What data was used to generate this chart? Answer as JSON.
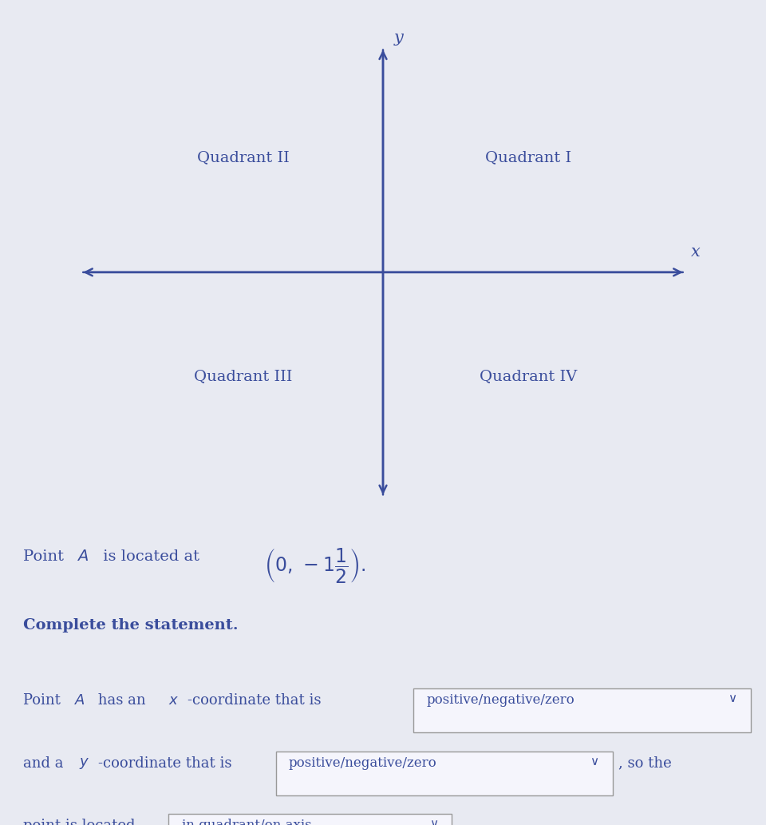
{
  "background_color": "#e8eaf2",
  "axis_color": "#3a4d9c",
  "text_color": "#3a4d9c",
  "quadrant_labels": [
    "Quadrant II",
    "Quadrant I",
    "Quadrant III",
    "Quadrant IV"
  ],
  "axis_label_x": "x",
  "axis_label_y": "y",
  "dropdown1": "positive/negative/zero",
  "dropdown2": "positive/negative/zero",
  "dropdown3": "in quadrant/on axis",
  "box_facecolor": "#f0f0f8",
  "box_edgecolor": "#aaaaaa",
  "font_size_quadrant": 14,
  "font_size_axis_label": 15,
  "font_size_body": 13,
  "font_size_coord": 17,
  "font_size_complete": 14
}
